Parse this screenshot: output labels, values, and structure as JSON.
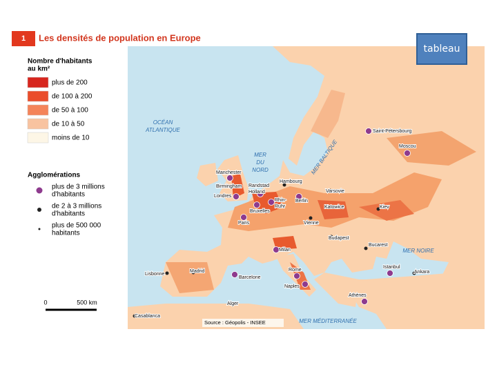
{
  "header": {
    "number": "1",
    "title": "Les densités de population en Europe"
  },
  "button": "tableau",
  "legend": {
    "density_title": [
      "Nombre d'habitants",
      "au km²"
    ],
    "density_classes": [
      "plus de 200",
      "de 100 à 200",
      "de 50 à 100",
      "de 10 à 50",
      "moins de 10"
    ],
    "agglomeration_title": "Agglomérations",
    "agglomeration_classes": [
      [
        "plus de 3 millions",
        "d'habitants"
      ],
      [
        "de 2 à 3 millions",
        "d'habitants"
      ],
      [
        "plus de 500 000",
        "habitants"
      ]
    ]
  },
  "scale": {
    "start": "0",
    "end": "500 km"
  },
  "source": "Source : Géopolis - INSEE",
  "seas": [
    [
      "OCÉAN",
      "ATLANTIQUE"
    ],
    [
      "MER",
      "DU",
      "NORD"
    ],
    [
      "MER BALTIQUE"
    ],
    [
      "MER NOIRE"
    ],
    [
      "MER MÉDITERRANÉE"
    ]
  ],
  "cities": [
    [
      "Saint-Pétersbourg"
    ],
    [
      "Moscou"
    ],
    [
      "Manchester"
    ],
    [
      "Birmingham"
    ],
    [
      "Londres"
    ],
    [
      "Randstad",
      "Holland"
    ],
    [
      "Hambourg"
    ],
    [
      "Berlin"
    ],
    [
      "Varsovie"
    ],
    [
      "Katowice"
    ],
    [
      "Bruxelles"
    ],
    [
      "Rhin-",
      "Ruhr"
    ],
    [
      "Paris"
    ],
    [
      "Kiev"
    ],
    [
      "Vienne"
    ],
    [
      "Budapest"
    ],
    [
      "Milan"
    ],
    [
      "Bucarest"
    ],
    [
      "Istanbul"
    ],
    [
      "Ankara"
    ],
    [
      "Lisbonne"
    ],
    [
      "Madrid"
    ],
    [
      "Barcelone"
    ],
    [
      "Rome"
    ],
    [
      "Naples"
    ],
    [
      "Athènes"
    ],
    [
      "Alger"
    ],
    [
      "Casablanca"
    ]
  ]
}
